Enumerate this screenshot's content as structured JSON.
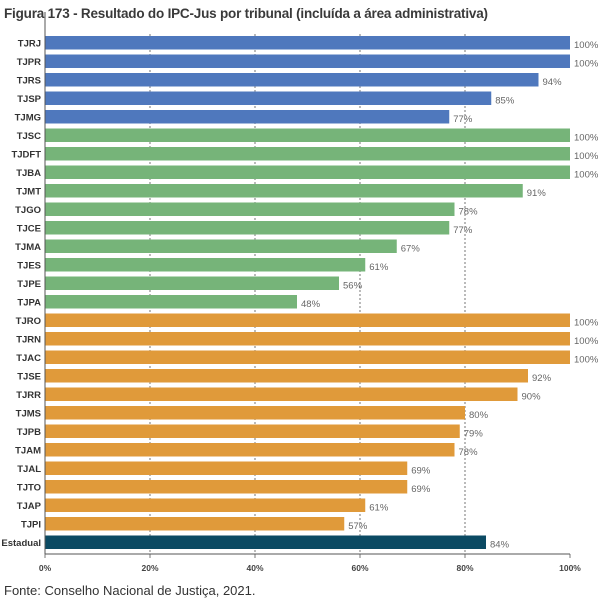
{
  "chart_data": {
    "type": "bar",
    "orientation": "horizontal",
    "title": "Figura 173 - Resultado do IPC-Jus por tribunal (incluída a área administrativa)",
    "categories": [
      "TJRJ",
      "TJPR",
      "TJRS",
      "TJSP",
      "TJMG",
      "TJSC",
      "TJDFT",
      "TJBA",
      "TJMT",
      "TJGO",
      "TJCE",
      "TJMA",
      "TJES",
      "TJPE",
      "TJPA",
      "TJRO",
      "TJRN",
      "TJAC",
      "TJSE",
      "TJRR",
      "TJMS",
      "TJPB",
      "TJAM",
      "TJAL",
      "TJTO",
      "TJAP",
      "TJPI",
      "Estadual"
    ],
    "values": [
      100,
      100,
      94,
      85,
      77,
      100,
      100,
      100,
      91,
      78,
      77,
      67,
      61,
      56,
      48,
      100,
      100,
      100,
      92,
      90,
      80,
      79,
      78,
      69,
      69,
      61,
      57,
      84
    ],
    "groups": [
      "large",
      "large",
      "large",
      "large",
      "large",
      "medium",
      "medium",
      "medium",
      "medium",
      "medium",
      "medium",
      "medium",
      "medium",
      "medium",
      "medium",
      "small",
      "small",
      "small",
      "small",
      "small",
      "small",
      "small",
      "small",
      "small",
      "small",
      "small",
      "small",
      "total"
    ],
    "group_colors": {
      "large": "#4f78bd",
      "medium": "#76b479",
      "small": "#e09a3a",
      "total": "#0b4a63"
    },
    "xlim": [
      0,
      100
    ],
    "xticks": [
      "0%",
      "20%",
      "40%",
      "60%",
      "80%",
      "100%"
    ],
    "value_suffix": "%",
    "grid": "vertical dashed",
    "legend": "none"
  },
  "source": "Fonte: Conselho Nacional de Justiça, 2021."
}
